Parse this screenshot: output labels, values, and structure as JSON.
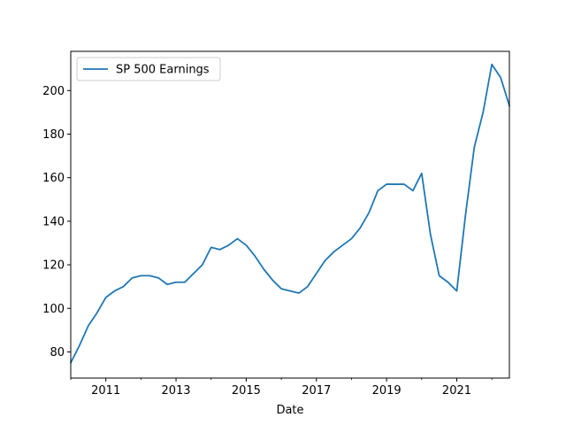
{
  "chart_data": {
    "type": "line",
    "title": "",
    "xlabel": "Date",
    "ylabel": "",
    "xlim": [
      "2010-01",
      "2022-07"
    ],
    "ylim": [
      68,
      218
    ],
    "x_ticks": [
      "2011",
      "2013",
      "2015",
      "2017",
      "2019",
      "2021"
    ],
    "y_ticks": [
      80,
      100,
      120,
      140,
      160,
      180,
      200
    ],
    "grid": false,
    "legend": {
      "position": "upper left"
    },
    "colors": {
      "series": "#1f77b4"
    },
    "series": [
      {
        "name": "SP 500 Earnings",
        "x": [
          "2010-01",
          "2010-04",
          "2010-07",
          "2010-10",
          "2011-01",
          "2011-04",
          "2011-07",
          "2011-10",
          "2012-01",
          "2012-04",
          "2012-07",
          "2012-10",
          "2013-01",
          "2013-04",
          "2013-07",
          "2013-10",
          "2014-01",
          "2014-04",
          "2014-07",
          "2014-10",
          "2015-01",
          "2015-04",
          "2015-07",
          "2015-10",
          "2016-01",
          "2016-04",
          "2016-07",
          "2016-10",
          "2017-01",
          "2017-04",
          "2017-07",
          "2017-10",
          "2018-01",
          "2018-04",
          "2018-07",
          "2018-10",
          "2019-01",
          "2019-04",
          "2019-07",
          "2019-10",
          "2020-01",
          "2020-04",
          "2020-07",
          "2020-10",
          "2021-01",
          "2021-04",
          "2021-07",
          "2021-10",
          "2022-01",
          "2022-04",
          "2022-07"
        ],
        "values": [
          75,
          83,
          92,
          98,
          105,
          108,
          110,
          114,
          115,
          115,
          114,
          111,
          112,
          112,
          116,
          120,
          128,
          127,
          129,
          132,
          129,
          124,
          118,
          113,
          109,
          108,
          107,
          110,
          116,
          122,
          126,
          129,
          132,
          137,
          144,
          154,
          157,
          157,
          157,
          154,
          162,
          134,
          115,
          112,
          108,
          143,
          174,
          190,
          212,
          206,
          193
        ]
      }
    ]
  }
}
